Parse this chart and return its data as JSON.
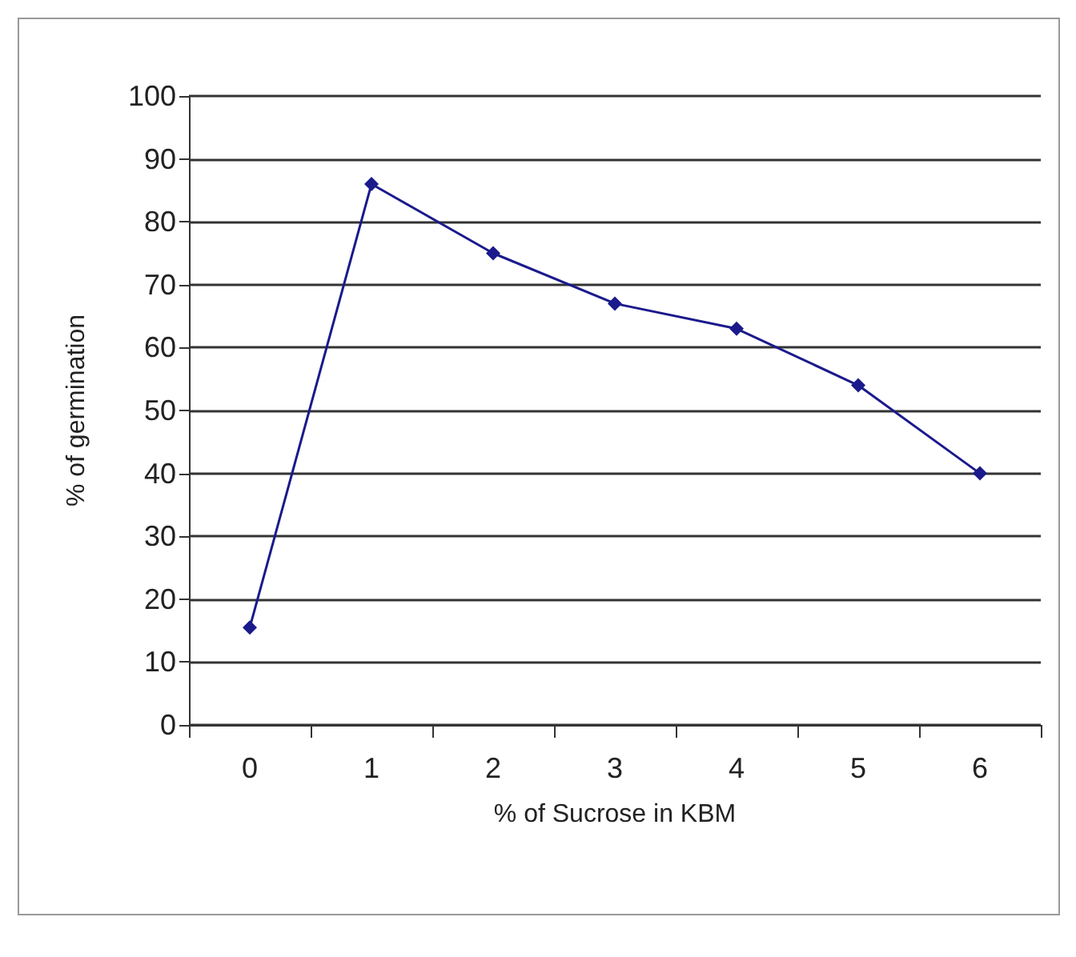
{
  "chart_data": {
    "type": "line",
    "xlabel": "% of Sucrose in KBM",
    "ylabel": "% of germination",
    "categories": [
      "0",
      "1",
      "2",
      "3",
      "4",
      "5",
      "6"
    ],
    "series": [
      {
        "color": "#1a1a8c",
        "values": [
          15.5,
          86,
          75,
          67,
          63,
          54,
          40
        ]
      }
    ],
    "ylim": [
      0,
      100
    ],
    "yticks": [
      0,
      10,
      20,
      30,
      40,
      50,
      60,
      70,
      80,
      90,
      100
    ],
    "grid": "y",
    "marker": "diamond",
    "line_style": "solid"
  }
}
